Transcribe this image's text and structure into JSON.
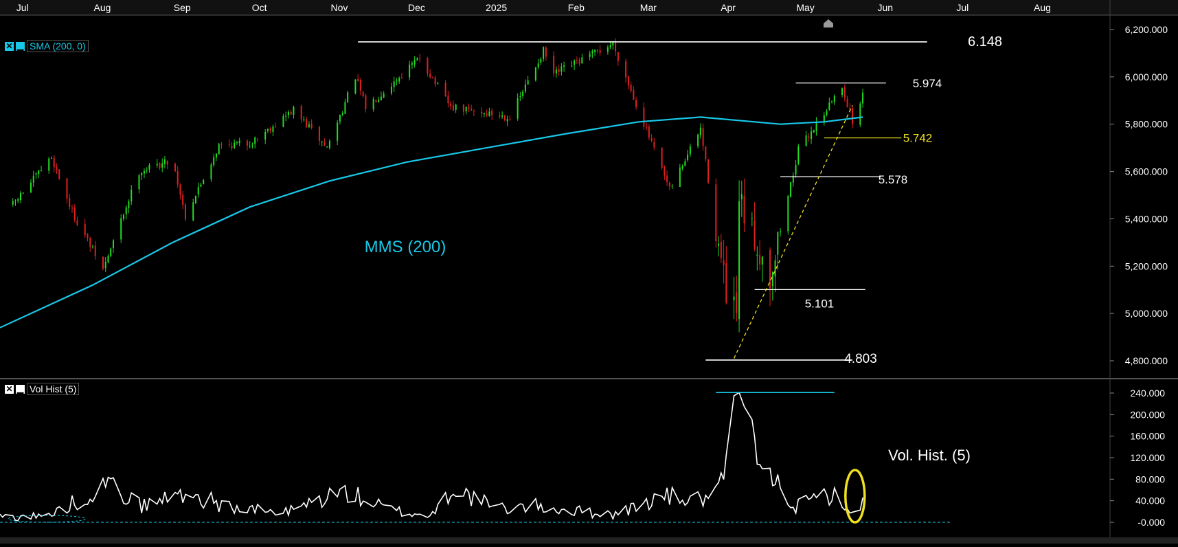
{
  "months": [
    "Jul",
    "Aug",
    "Sep",
    "Oct",
    "Nov",
    "Dec",
    "2025",
    "Feb",
    "Mar",
    "Apr",
    "May",
    "Jun",
    "Jul",
    "Aug"
  ],
  "price_axis_labels": [
    "6,200.000",
    "6,000.000",
    "5,800.000",
    "5,600.000",
    "5,400.000",
    "5,200.000",
    "5,000.000",
    "4,800.000"
  ],
  "volume_axis_labels": [
    "240.000",
    "200.000",
    "160.000",
    "120.000",
    "80.000",
    "40.000",
    "-0.000"
  ],
  "indicators": {
    "sma_label": "SMA (200, 0)",
    "vol_label": "Vol Hist (5)",
    "close_glyph": "✕",
    "min_glyph": "▁"
  },
  "annotations": {
    "level_6148": "6.148",
    "level_5974": "5.974",
    "level_5742": "5.742",
    "level_5578": "5.578",
    "level_5101": "5.101",
    "level_4803": "4.803",
    "mms_label": "MMS (200)",
    "vol_hist_label": "Vol. Hist. (5)"
  },
  "colors": {
    "up": "#22dd22",
    "down": "#e02020",
    "sma": "#18c8e8",
    "grid": "#333333",
    "axis_text": "#ffffff",
    "level_line": "#ffffff",
    "highlight": "#f0e020"
  },
  "chart_data": [
    {
      "type": "candlestick",
      "title": "",
      "ylim": [
        4760,
        6260
      ],
      "y_ticks": [
        4800,
        5000,
        5200,
        5400,
        5600,
        5800,
        6000,
        6200
      ],
      "x_range": [
        "2024-06-26",
        "2025-08-31"
      ],
      "close_anchors": [
        [
          "2024-07-01",
          5460
        ],
        [
          "2024-07-16",
          5660
        ],
        [
          "2024-07-24",
          5430
        ],
        [
          "2024-08-05",
          5185
        ],
        [
          "2024-08-19",
          5600
        ],
        [
          "2024-09-01",
          5650
        ],
        [
          "2024-09-06",
          5410
        ],
        [
          "2024-09-19",
          5710
        ],
        [
          "2024-10-01",
          5720
        ],
        [
          "2024-10-18",
          5860
        ],
        [
          "2024-10-31",
          5700
        ],
        [
          "2024-11-11",
          6000
        ],
        [
          "2024-11-15",
          5870
        ],
        [
          "2024-12-06",
          6080
        ],
        [
          "2024-12-18",
          5870
        ],
        [
          "2025-01-10",
          5830
        ],
        [
          "2025-01-23",
          6110
        ],
        [
          "2025-01-27",
          6010
        ],
        [
          "2025-02-19",
          6140
        ],
        [
          "2025-03-13",
          5520
        ],
        [
          "2025-03-25",
          5780
        ],
        [
          "2025-04-04",
          5070
        ],
        [
          "2025-04-08",
          4980
        ],
        [
          "2025-04-09",
          5460
        ],
        [
          "2025-04-21",
          5160
        ],
        [
          "2025-05-02",
          5690
        ],
        [
          "2025-05-12",
          5850
        ],
        [
          "2025-05-19",
          5960
        ],
        [
          "2025-05-23",
          5810
        ],
        [
          "2025-05-27",
          5920
        ]
      ],
      "sma_200": [
        [
          "2024-06-26",
          4940
        ],
        [
          "2024-08-01",
          5120
        ],
        [
          "2024-09-01",
          5300
        ],
        [
          "2024-10-01",
          5450
        ],
        [
          "2024-11-01",
          5560
        ],
        [
          "2024-12-01",
          5640
        ],
        [
          "2025-01-01",
          5700
        ],
        [
          "2025-02-01",
          5760
        ],
        [
          "2025-03-01",
          5810
        ],
        [
          "2025-03-25",
          5830
        ],
        [
          "2025-04-25",
          5800
        ],
        [
          "2025-05-12",
          5810
        ],
        [
          "2025-05-27",
          5830
        ]
      ],
      "levels": [
        {
          "value": 6148,
          "from": "2024-11-12",
          "to": "2025-06-21",
          "color": "#ffffff"
        },
        {
          "value": 5974,
          "from": "2025-05-01",
          "to": "2025-06-05",
          "color": "#ffffff"
        },
        {
          "value": 5742,
          "from": "2025-05-12",
          "to": "2025-06-11",
          "color": "#f0e020"
        },
        {
          "value": 5578,
          "from": "2025-04-25",
          "to": "2025-06-03",
          "color": "#ffffff"
        },
        {
          "value": 5101,
          "from": "2025-04-15",
          "to": "2025-05-28",
          "color": "#ffffff"
        },
        {
          "value": 4803,
          "from": "2025-03-27",
          "to": "2025-05-23",
          "color": "#ffffff"
        }
      ],
      "trendline": [
        [
          "2025-04-07",
          4810
        ],
        [
          "2025-05-23",
          5880
        ]
      ]
    },
    {
      "type": "line",
      "title": "",
      "ylim": [
        -8,
        248
      ],
      "y_ticks": [
        240,
        200,
        160,
        120,
        80,
        40,
        0
      ],
      "zero_line": 0,
      "peak_marker": 241,
      "values_anchors": [
        [
          "2024-06-26",
          10
        ],
        [
          "2024-07-15",
          12
        ],
        [
          "2024-08-01",
          55
        ],
        [
          "2024-08-06",
          75
        ],
        [
          "2024-08-20",
          30
        ],
        [
          "2024-09-06",
          55
        ],
        [
          "2024-09-25",
          25
        ],
        [
          "2024-10-15",
          18
        ],
        [
          "2024-11-06",
          58
        ],
        [
          "2024-11-25",
          22
        ],
        [
          "2024-12-10",
          12
        ],
        [
          "2024-12-19",
          62
        ],
        [
          "2025-01-05",
          25
        ],
        [
          "2025-01-20",
          30
        ],
        [
          "2025-02-01",
          22
        ],
        [
          "2025-02-20",
          15
        ],
        [
          "2025-03-01",
          30
        ],
        [
          "2025-03-10",
          48
        ],
        [
          "2025-03-25",
          42
        ],
        [
          "2025-04-01",
          55
        ],
        [
          "2025-04-04",
          110
        ],
        [
          "2025-04-07",
          235
        ],
        [
          "2025-04-09",
          241
        ],
        [
          "2025-04-14",
          175
        ],
        [
          "2025-04-17",
          95
        ],
        [
          "2025-04-24",
          75
        ],
        [
          "2025-05-01",
          28
        ],
        [
          "2025-05-08",
          42
        ],
        [
          "2025-05-13",
          52
        ],
        [
          "2025-05-19",
          45
        ],
        [
          "2025-05-22",
          10
        ],
        [
          "2025-05-27",
          38
        ]
      ]
    }
  ]
}
